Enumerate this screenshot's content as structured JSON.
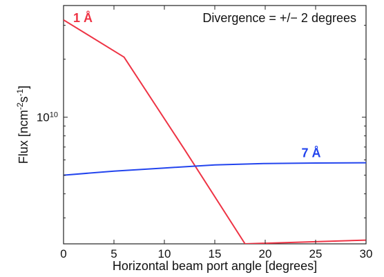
{
  "chart_data": {
    "type": "line",
    "xlabel": "Horizontal beam port angle [degrees]",
    "ylabel": {
      "base": "Flux [ncm",
      "exp1": "-2",
      "mid": "s",
      "exp2": "-1",
      "end": "]"
    },
    "xlim": [
      0,
      30
    ],
    "xticks": [
      0,
      5,
      10,
      15,
      20,
      25,
      30
    ],
    "xtick_labels": [
      "0",
      "5",
      "10",
      "15",
      "20",
      "25",
      "30"
    ],
    "yscale": "log",
    "ylim": [
      2200000000.0,
      38000000000.0
    ],
    "ytick": {
      "value": 10000000000.0,
      "base": "10",
      "exponent": "10"
    },
    "annotation": "Divergence = +/− 2 degrees",
    "grid": false,
    "series": [
      {
        "name": "1 Å",
        "color": "#ee3344",
        "x": [
          0,
          6,
          12,
          18,
          30
        ],
        "y": [
          32000000000.0,
          20500000000.0,
          6800000000.0,
          2200000000.0,
          2300000000.0
        ]
      },
      {
        "name": "7 Å",
        "color": "#2244ee",
        "x": [
          0,
          5,
          10,
          15,
          20,
          25,
          30
        ],
        "y": [
          5000000000.0,
          5250000000.0,
          5450000000.0,
          5650000000.0,
          5750000000.0,
          5780000000.0,
          5800000000.0
        ]
      }
    ]
  }
}
